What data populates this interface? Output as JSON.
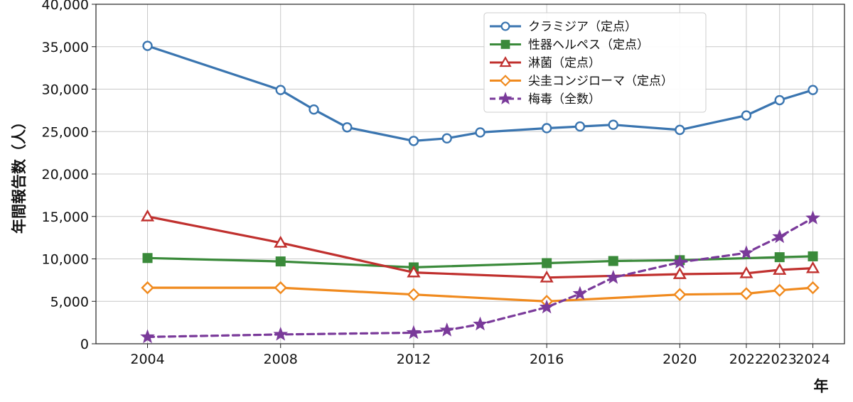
{
  "chart_data": {
    "type": "line",
    "ylabel": "年間報告数（人）",
    "xlabel": "年",
    "x_ticks": [
      "2004",
      "2008",
      "2012",
      "2016",
      "2020",
      "2022",
      "2023",
      "2024"
    ],
    "y_ticks": [
      "0",
      "5,000",
      "10,000",
      "15,000",
      "20,000",
      "25,000",
      "30,000",
      "35,000",
      "40,000"
    ],
    "ylim": [
      0,
      40000
    ],
    "grid": true,
    "legend_position": "top-right",
    "series": [
      {
        "name": "クラミジア（定点）",
        "color": "#3a75b0",
        "marker": "circle-open",
        "line_style": "solid",
        "points": [
          {
            "x": "2004",
            "y": 35100
          },
          {
            "x": "2008",
            "y": 29900
          },
          {
            "x": "2009",
            "y": 27600
          },
          {
            "x": "2010",
            "y": 25500
          },
          {
            "x": "2012",
            "y": 23900
          },
          {
            "x": "2013",
            "y": 24200
          },
          {
            "x": "2014",
            "y": 24900
          },
          {
            "x": "2016",
            "y": 25400
          },
          {
            "x": "2017",
            "y": 25600
          },
          {
            "x": "2018",
            "y": 25800
          },
          {
            "x": "2020",
            "y": 25200
          },
          {
            "x": "2022",
            "y": 26900
          },
          {
            "x": "2023",
            "y": 28700
          },
          {
            "x": "2024",
            "y": 29900
          }
        ]
      },
      {
        "name": "性器ヘルペス（定点）",
        "color": "#3a8a3a",
        "marker": "square",
        "line_style": "solid",
        "points": [
          {
            "x": "2004",
            "y": 10100
          },
          {
            "x": "2008",
            "y": 9700
          },
          {
            "x": "2012",
            "y": 9000
          },
          {
            "x": "2016",
            "y": 9500
          },
          {
            "x": "2018",
            "y": 9750
          },
          {
            "x": "2020",
            "y": 9850
          },
          {
            "x": "2023",
            "y": 10200
          },
          {
            "x": "2024",
            "y": 10300
          }
        ]
      },
      {
        "name": "淋菌（定点）",
        "color": "#c0302e",
        "marker": "triangle-open",
        "line_style": "solid",
        "points": [
          {
            "x": "2004",
            "y": 15000
          },
          {
            "x": "2008",
            "y": 11900
          },
          {
            "x": "2012",
            "y": 8400
          },
          {
            "x": "2016",
            "y": 7800
          },
          {
            "x": "2020",
            "y": 8200
          },
          {
            "x": "2022",
            "y": 8300
          },
          {
            "x": "2023",
            "y": 8700
          },
          {
            "x": "2024",
            "y": 8900
          }
        ]
      },
      {
        "name": "尖圭コンジローマ（定点）",
        "color": "#f08a1e",
        "marker": "diamond-open",
        "line_style": "solid",
        "points": [
          {
            "x": "2004",
            "y": 6600
          },
          {
            "x": "2008",
            "y": 6600
          },
          {
            "x": "2012",
            "y": 5800
          },
          {
            "x": "2016",
            "y": 5000
          },
          {
            "x": "2020",
            "y": 5800
          },
          {
            "x": "2022",
            "y": 5900
          },
          {
            "x": "2023",
            "y": 6300
          },
          {
            "x": "2024",
            "y": 6600
          }
        ]
      },
      {
        "name": "梅毒（全数）",
        "color": "#7a3a9a",
        "marker": "star",
        "line_style": "dashed",
        "points": [
          {
            "x": "2004",
            "y": 800
          },
          {
            "x": "2008",
            "y": 1100
          },
          {
            "x": "2012",
            "y": 1300
          },
          {
            "x": "2013",
            "y": 1600
          },
          {
            "x": "2014",
            "y": 2300
          },
          {
            "x": "2016",
            "y": 4300
          },
          {
            "x": "2017",
            "y": 5900
          },
          {
            "x": "2018",
            "y": 7800
          },
          {
            "x": "2020",
            "y": 9600
          },
          {
            "x": "2022",
            "y": 10700
          },
          {
            "x": "2023",
            "y": 12600
          },
          {
            "x": "2024",
            "y": 14800
          }
        ]
      }
    ]
  }
}
